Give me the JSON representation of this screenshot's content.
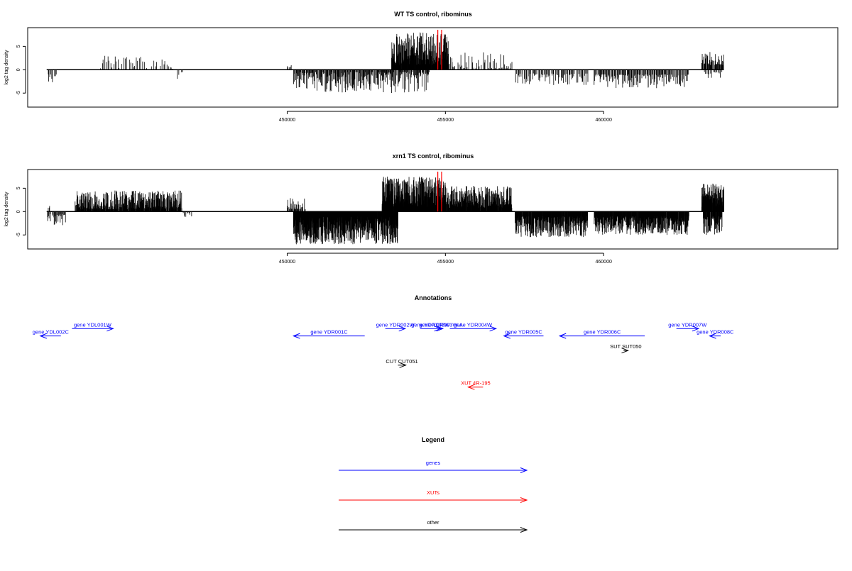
{
  "colors": {
    "gene": "#0000ff",
    "xut": "#ff0000",
    "other": "#000000",
    "density": "#000000",
    "marker": "#ff0000"
  },
  "chart_data": [
    {
      "type": "bar",
      "title": "WT TS control, ribominus",
      "xlabel": "",
      "ylabel": "log2 tag density",
      "xlim": [
        441800,
        467400
      ],
      "ylim": [
        -8,
        9
      ],
      "xticks": [
        450000,
        455000,
        460000
      ],
      "xtick_labels": [
        "450000",
        "455000",
        "460000"
      ],
      "yticks": [
        -5,
        0,
        5
      ],
      "ytick_labels": [
        "-5",
        "0",
        "5"
      ],
      "baseline_range": [
        442400,
        463800
      ],
      "markers": [
        454760,
        454880
      ],
      "regions": [
        {
          "start": 442450,
          "end": 442700,
          "min": -2.8,
          "max": -1.0,
          "density": 0.045
        },
        {
          "start": 444100,
          "end": 445900,
          "min": 0.3,
          "max": 3.2,
          "density": 0.022
        },
        {
          "start": 446000,
          "end": 446400,
          "min": 0.2,
          "max": 2.4,
          "density": 0.02
        },
        {
          "start": 446500,
          "end": 446700,
          "min": -2.2,
          "max": -0.5,
          "density": 0.02
        },
        {
          "start": 450000,
          "end": 450150,
          "min": 0.5,
          "max": 2.0,
          "density": 0.03
        },
        {
          "start": 450200,
          "end": 454500,
          "min": -5.0,
          "max": -0.5,
          "density": 0.07
        },
        {
          "start": 452900,
          "end": 453150,
          "min": -2.8,
          "max": -0.5,
          "density": 0.03
        },
        {
          "start": 453300,
          "end": 455100,
          "min": 1.0,
          "max": 8.0,
          "density": 0.2
        },
        {
          "start": 454300,
          "end": 455300,
          "min": 0.5,
          "max": 4.0,
          "density": 0.04
        },
        {
          "start": 455400,
          "end": 457100,
          "min": 0.3,
          "max": 3.8,
          "density": 0.03
        },
        {
          "start": 457200,
          "end": 459500,
          "min": -3.5,
          "max": -0.8,
          "density": 0.04
        },
        {
          "start": 459700,
          "end": 462700,
          "min": -4.0,
          "max": -1.0,
          "density": 0.05
        },
        {
          "start": 463100,
          "end": 463800,
          "min": 1.0,
          "max": 3.8,
          "density": 0.09
        },
        {
          "start": 463200,
          "end": 463750,
          "min": -1.8,
          "max": -0.5,
          "density": 0.03
        }
      ]
    },
    {
      "type": "bar",
      "title": "xrn1 TS control, ribominus",
      "xlabel": "",
      "ylabel": "log2 tag density",
      "xlim": [
        441800,
        467400
      ],
      "ylim": [
        -8,
        9
      ],
      "xticks": [
        450000,
        455000,
        460000
      ],
      "xtick_labels": [
        "450000",
        "455000",
        "460000"
      ],
      "yticks": [
        -5,
        0,
        5
      ],
      "ytick_labels": [
        "-5",
        "0",
        "5"
      ],
      "baseline_range": [
        442400,
        463800
      ],
      "markers": [
        454760,
        454880
      ],
      "regions": [
        {
          "start": 442420,
          "end": 443000,
          "min": -3.0,
          "max": -0.5,
          "density": 0.06
        },
        {
          "start": 442450,
          "end": 442500,
          "min": 0.5,
          "max": 1.5,
          "density": 0.04
        },
        {
          "start": 443300,
          "end": 446700,
          "min": 0.5,
          "max": 4.5,
          "density": 0.15
        },
        {
          "start": 446700,
          "end": 447000,
          "min": -1.5,
          "max": -0.3,
          "density": 0.03
        },
        {
          "start": 450000,
          "end": 450600,
          "min": 0.5,
          "max": 3.0,
          "density": 0.06
        },
        {
          "start": 450200,
          "end": 453500,
          "min": -7.0,
          "max": -1.0,
          "density": 0.3
        },
        {
          "start": 453000,
          "end": 455000,
          "min": 1.0,
          "max": 7.5,
          "density": 0.3
        },
        {
          "start": 455000,
          "end": 457100,
          "min": 0.8,
          "max": 5.5,
          "density": 0.2
        },
        {
          "start": 457200,
          "end": 459500,
          "min": -5.5,
          "max": -1.0,
          "density": 0.18
        },
        {
          "start": 459700,
          "end": 462700,
          "min": -5.0,
          "max": -1.0,
          "density": 0.18
        },
        {
          "start": 463100,
          "end": 463800,
          "min": 1.0,
          "max": 6.0,
          "density": 0.3
        },
        {
          "start": 463150,
          "end": 463750,
          "min": -5.0,
          "max": -1.0,
          "density": 0.15
        }
      ]
    }
  ],
  "annotations": {
    "title": "Annotations",
    "items": [
      {
        "label": "gene YDL002C",
        "kind": "gene",
        "start": 442200,
        "end": 442850,
        "strand": "-",
        "row": 2
      },
      {
        "label": "gene YDL001W",
        "kind": "gene",
        "start": 443200,
        "end": 444500,
        "strand": "+",
        "row": 1
      },
      {
        "label": "gene YDR001C",
        "kind": "gene",
        "start": 450200,
        "end": 452450,
        "strand": "-",
        "row": 2
      },
      {
        "label": "gene YDR002W",
        "kind": "gene",
        "start": 453100,
        "end": 453730,
        "strand": "+",
        "row": 1
      },
      {
        "label": "gene YDR003W",
        "kind": "gene",
        "start": 454200,
        "end": 454850,
        "strand": "+",
        "row": 1
      },
      {
        "label": "gene YDR003W-A",
        "kind": "gene",
        "start": 454800,
        "end": 454920,
        "strand": "+",
        "row": 1
      },
      {
        "label": "gene YDR004W",
        "kind": "gene",
        "start": 455140,
        "end": 456600,
        "strand": "+",
        "row": 1
      },
      {
        "label": "gene YDR005C",
        "kind": "gene",
        "start": 456850,
        "end": 458100,
        "strand": "-",
        "row": 2
      },
      {
        "label": "gene YDR006C",
        "kind": "gene",
        "start": 458610,
        "end": 461300,
        "strand": "-",
        "row": 2
      },
      {
        "label": "gene YDR007W",
        "kind": "gene",
        "start": 462300,
        "end": 463000,
        "strand": "+",
        "row": 1
      },
      {
        "label": "gene YDR008C",
        "kind": "gene",
        "start": 463350,
        "end": 463700,
        "strand": "-",
        "row": 2
      },
      {
        "label": "SUT SUT050",
        "kind": "other",
        "start": 460630,
        "end": 460770,
        "strand": "+",
        "row": 4
      },
      {
        "label": "CUT CUT051",
        "kind": "other",
        "start": 453500,
        "end": 453750,
        "strand": "+",
        "row": 6
      },
      {
        "label": "XUT 4R-195",
        "kind": "xut",
        "start": 455720,
        "end": 456190,
        "strand": "-",
        "row": 9
      }
    ]
  },
  "legend": {
    "title": "Legend",
    "entries": [
      {
        "label": "genes",
        "kind": "gene"
      },
      {
        "label": "XUTs",
        "kind": "xut"
      },
      {
        "label": "other",
        "kind": "other"
      }
    ]
  }
}
